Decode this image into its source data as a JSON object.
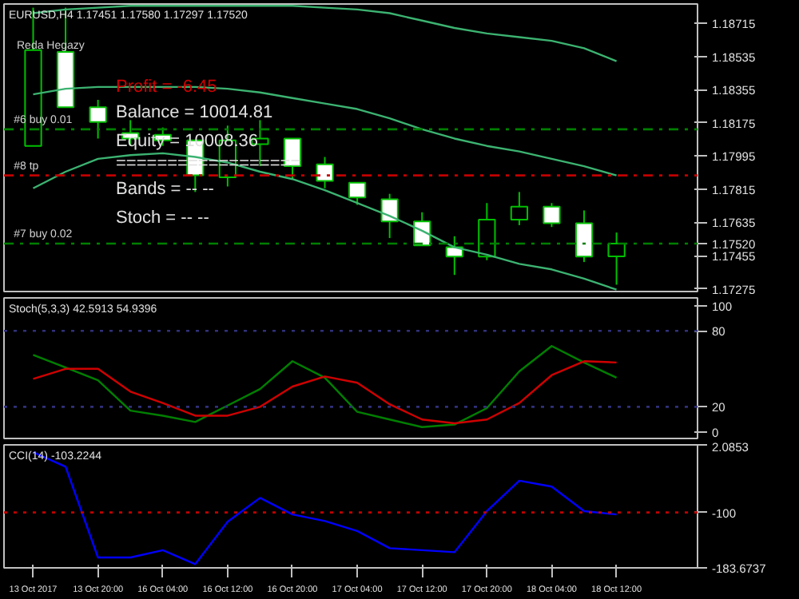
{
  "chart_data": [
    {
      "type": "candlestick",
      "title": "EURUSD,H4  1.17451 1.17580 1.17297 1.17520",
      "categories": [
        null,
        null,
        null,
        null,
        null,
        null,
        null,
        null,
        null,
        null,
        null,
        null,
        null,
        null,
        null,
        null,
        null,
        null,
        null
      ],
      "ohlc": [
        [
          1.1805,
          1.188,
          1.1805,
          1.1857
        ],
        [
          1.1856,
          1.188,
          1.1826,
          1.1826
        ],
        [
          1.1826,
          1.183,
          1.1809,
          1.1818
        ],
        [
          1.1812,
          1.1819,
          1.1805,
          1.1809
        ],
        [
          1.1811,
          1.1815,
          1.1805,
          1.1808
        ],
        [
          1.1808,
          1.1808,
          1.178,
          1.1789
        ],
        [
          1.1788,
          1.1816,
          1.1783,
          1.1808
        ],
        [
          1.1806,
          1.1819,
          1.1794,
          1.1809
        ],
        [
          1.1809,
          1.1809,
          1.1787,
          1.1794
        ],
        [
          1.1795,
          1.1799,
          1.1782,
          1.1786
        ],
        [
          1.1785,
          1.1785,
          1.1773,
          1.1777
        ],
        [
          1.1776,
          1.1779,
          1.1755,
          1.1764
        ],
        [
          1.1764,
          1.1769,
          1.1751,
          1.1751
        ],
        [
          1.175,
          1.1756,
          1.1735,
          1.1745
        ],
        [
          1.1745,
          1.1774,
          1.1743,
          1.1765
        ],
        [
          1.1765,
          1.178,
          1.1762,
          1.1772
        ],
        [
          1.1772,
          1.1774,
          1.1761,
          1.1763
        ],
        [
          1.1763,
          1.177,
          1.1742,
          1.1745
        ],
        [
          1.17451,
          1.1758,
          1.17297,
          1.1752
        ]
      ],
      "color": "#00c000",
      "colors": [
        "#000000",
        "#ffffff",
        "#ffffff",
        "#ffffff",
        "#ffffff",
        "#ffffff",
        "#000000",
        "#000000",
        "#ffffff",
        "#ffffff",
        "#ffffff",
        "#ffffff",
        "#ffffff",
        "#ffffff",
        "#000000",
        "#000000",
        "#ffffff",
        "#ffffff",
        "#000000"
      ],
      "series": [
        {
          "type": "line",
          "color": "#3cb371",
          "values": [
            1.1877,
            1.1879,
            1.188,
            1.1881,
            1.1881,
            1.1881,
            1.1881,
            1.1881,
            1.1881,
            1.188,
            1.1879,
            1.1877,
            1.1873,
            1.1869,
            1.1866,
            1.1864,
            1.1862,
            1.1858,
            1.1851
          ]
        },
        {
          "type": "line",
          "color": "#3cb371",
          "values": [
            1.1833,
            1.1836,
            1.1837,
            1.1837,
            1.1837,
            1.1837,
            1.1836,
            1.1834,
            1.1831,
            1.1828,
            1.1825,
            1.182,
            1.1814,
            1.1809,
            1.1805,
            1.1802,
            1.1798,
            1.1794,
            1.1789
          ]
        },
        {
          "type": "line",
          "color": "#3cb371",
          "values": [
            1.1782,
            1.1791,
            1.1798,
            1.18,
            1.1801,
            1.1799,
            1.1796,
            1.1791,
            1.1787,
            1.1781,
            1.1774,
            1.1767,
            1.1759,
            1.175,
            1.1746,
            1.1741,
            1.1738,
            1.1733,
            1.1727
          ]
        }
      ],
      "ylim": [
        1.1726,
        1.1882
      ],
      "yticks": [
        1.18715,
        1.18535,
        1.18355,
        1.18175,
        1.17995,
        1.17815,
        1.17635,
        {
          "value": 1.1752,
          "label": "1.17520"
        },
        1.17455,
        1.17275
      ],
      "ref_lines": [
        {
          "axis": "y",
          "value": 1.1814,
          "label": "#6 buy 0.01",
          "color": "#008000",
          "line_style": "dashed"
        },
        {
          "axis": "y",
          "value": 1.1789,
          "label": "#8 tp",
          "color": "#c00000",
          "line_style": "dashed"
        },
        {
          "axis": "y",
          "value": 1.1752,
          "label": "#7 buy 0.02",
          "color": "#008000",
          "line_style": "dashed"
        }
      ],
      "annotations": [
        "Reda Hegazy",
        "Profit    =  -6.45",
        "Balance = 10014.81",
        "Equity   =  10008.36",
        "==================",
        "Bands   =  --  --",
        "Stoch   =  --  --"
      ],
      "tick_labels": "y"
    },
    {
      "type": "line",
      "title": "Stoch(5,3,3) 42.5913 54.9396",
      "categories": [
        null,
        null,
        null,
        null,
        null,
        null,
        null,
        null,
        null,
        null,
        null,
        null,
        null,
        null,
        null,
        null,
        null,
        null,
        null
      ],
      "series": [
        {
          "color": "#008000",
          "values": [
            61,
            51,
            41,
            17,
            13,
            8,
            21,
            34,
            56,
            43,
            16,
            10,
            4,
            6,
            19,
            48,
            68,
            55,
            43
          ]
        },
        {
          "color": "#d00000",
          "values": [
            42,
            50,
            50,
            32,
            23,
            13,
            13,
            20,
            36,
            44,
            39,
            22,
            10,
            7,
            10,
            23,
            45,
            56,
            55
          ]
        }
      ],
      "ylim": [
        -5,
        106
      ],
      "yticks": [
        0,
        20,
        80,
        100
      ],
      "ref_lines": [
        {
          "axis": "y",
          "value": 80,
          "color": "#30307a",
          "line_style": "dotted"
        },
        {
          "axis": "y",
          "value": 20,
          "color": "#30307a",
          "line_style": "dotted"
        }
      ],
      "tick_labels": "y"
    },
    {
      "type": "line",
      "title": "CCI(14) -103.2244",
      "categories": [
        "13 Oct 2017",
        null,
        "13 Oct 20:00",
        null,
        "16 Oct 04:00",
        null,
        "16 Oct 12:00",
        null,
        "16 Oct 20:00",
        null,
        "17 Oct 04:00",
        null,
        "17 Oct 12:00",
        null,
        "17 Oct 20:00",
        null,
        "18 Oct 04:00",
        null,
        "18 Oct 12:00"
      ],
      "series": [
        {
          "color": "#0000ff",
          "values": [
            -9,
            -31,
            -168,
            -168,
            -157,
            -178,
            -114,
            -78,
            -103,
            -113,
            -128,
            -154,
            -157,
            -160,
            -98,
            -52,
            -61,
            -98,
            -103
          ]
        }
      ],
      "ylim": [
        -183.6737,
        2.0853
      ],
      "yticks": [
        2.0853,
        -100,
        -183.6737
      ],
      "ref_lines": [
        {
          "axis": "y",
          "value": -100,
          "color": "#c00000",
          "line_style": "dotted"
        }
      ]
    }
  ]
}
